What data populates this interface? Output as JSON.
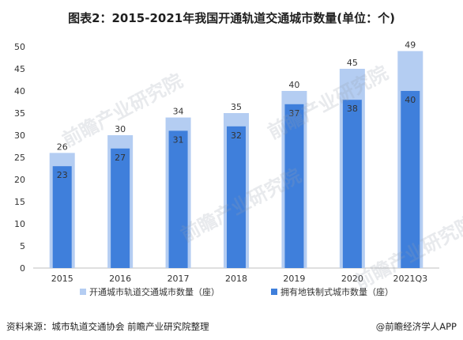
{
  "title": "图表2：2015-2021年我国开通轨道交通城市数量(单位：个)",
  "footer": {
    "source": "资料来源：城市轨道交通协会 前瞻产业研究院整理",
    "brand": "@前瞻经济学人APP"
  },
  "watermark": "前瞻产业研究院",
  "colors": {
    "total": "#b4cdf2",
    "metro": "#3f7fdb",
    "axis": "#bfbfbf",
    "text": "#333333"
  },
  "chart_data": {
    "type": "bar",
    "categories": [
      "2015",
      "2016",
      "2017",
      "2018",
      "2019",
      "2020",
      "2021Q3"
    ],
    "series": [
      {
        "name": "开通城市轨道交通城市数量（座）",
        "values": [
          26,
          30,
          34,
          35,
          40,
          45,
          49
        ]
      },
      {
        "name": "拥有地铁制式城市数量（座）",
        "values": [
          23,
          27,
          31,
          32,
          37,
          38,
          40
        ]
      }
    ],
    "ylim": [
      0,
      50
    ],
    "yticks": [
      0,
      5,
      10,
      15,
      20,
      25,
      30,
      35,
      40,
      45,
      50
    ],
    "grid": false,
    "legend": "bottom"
  }
}
